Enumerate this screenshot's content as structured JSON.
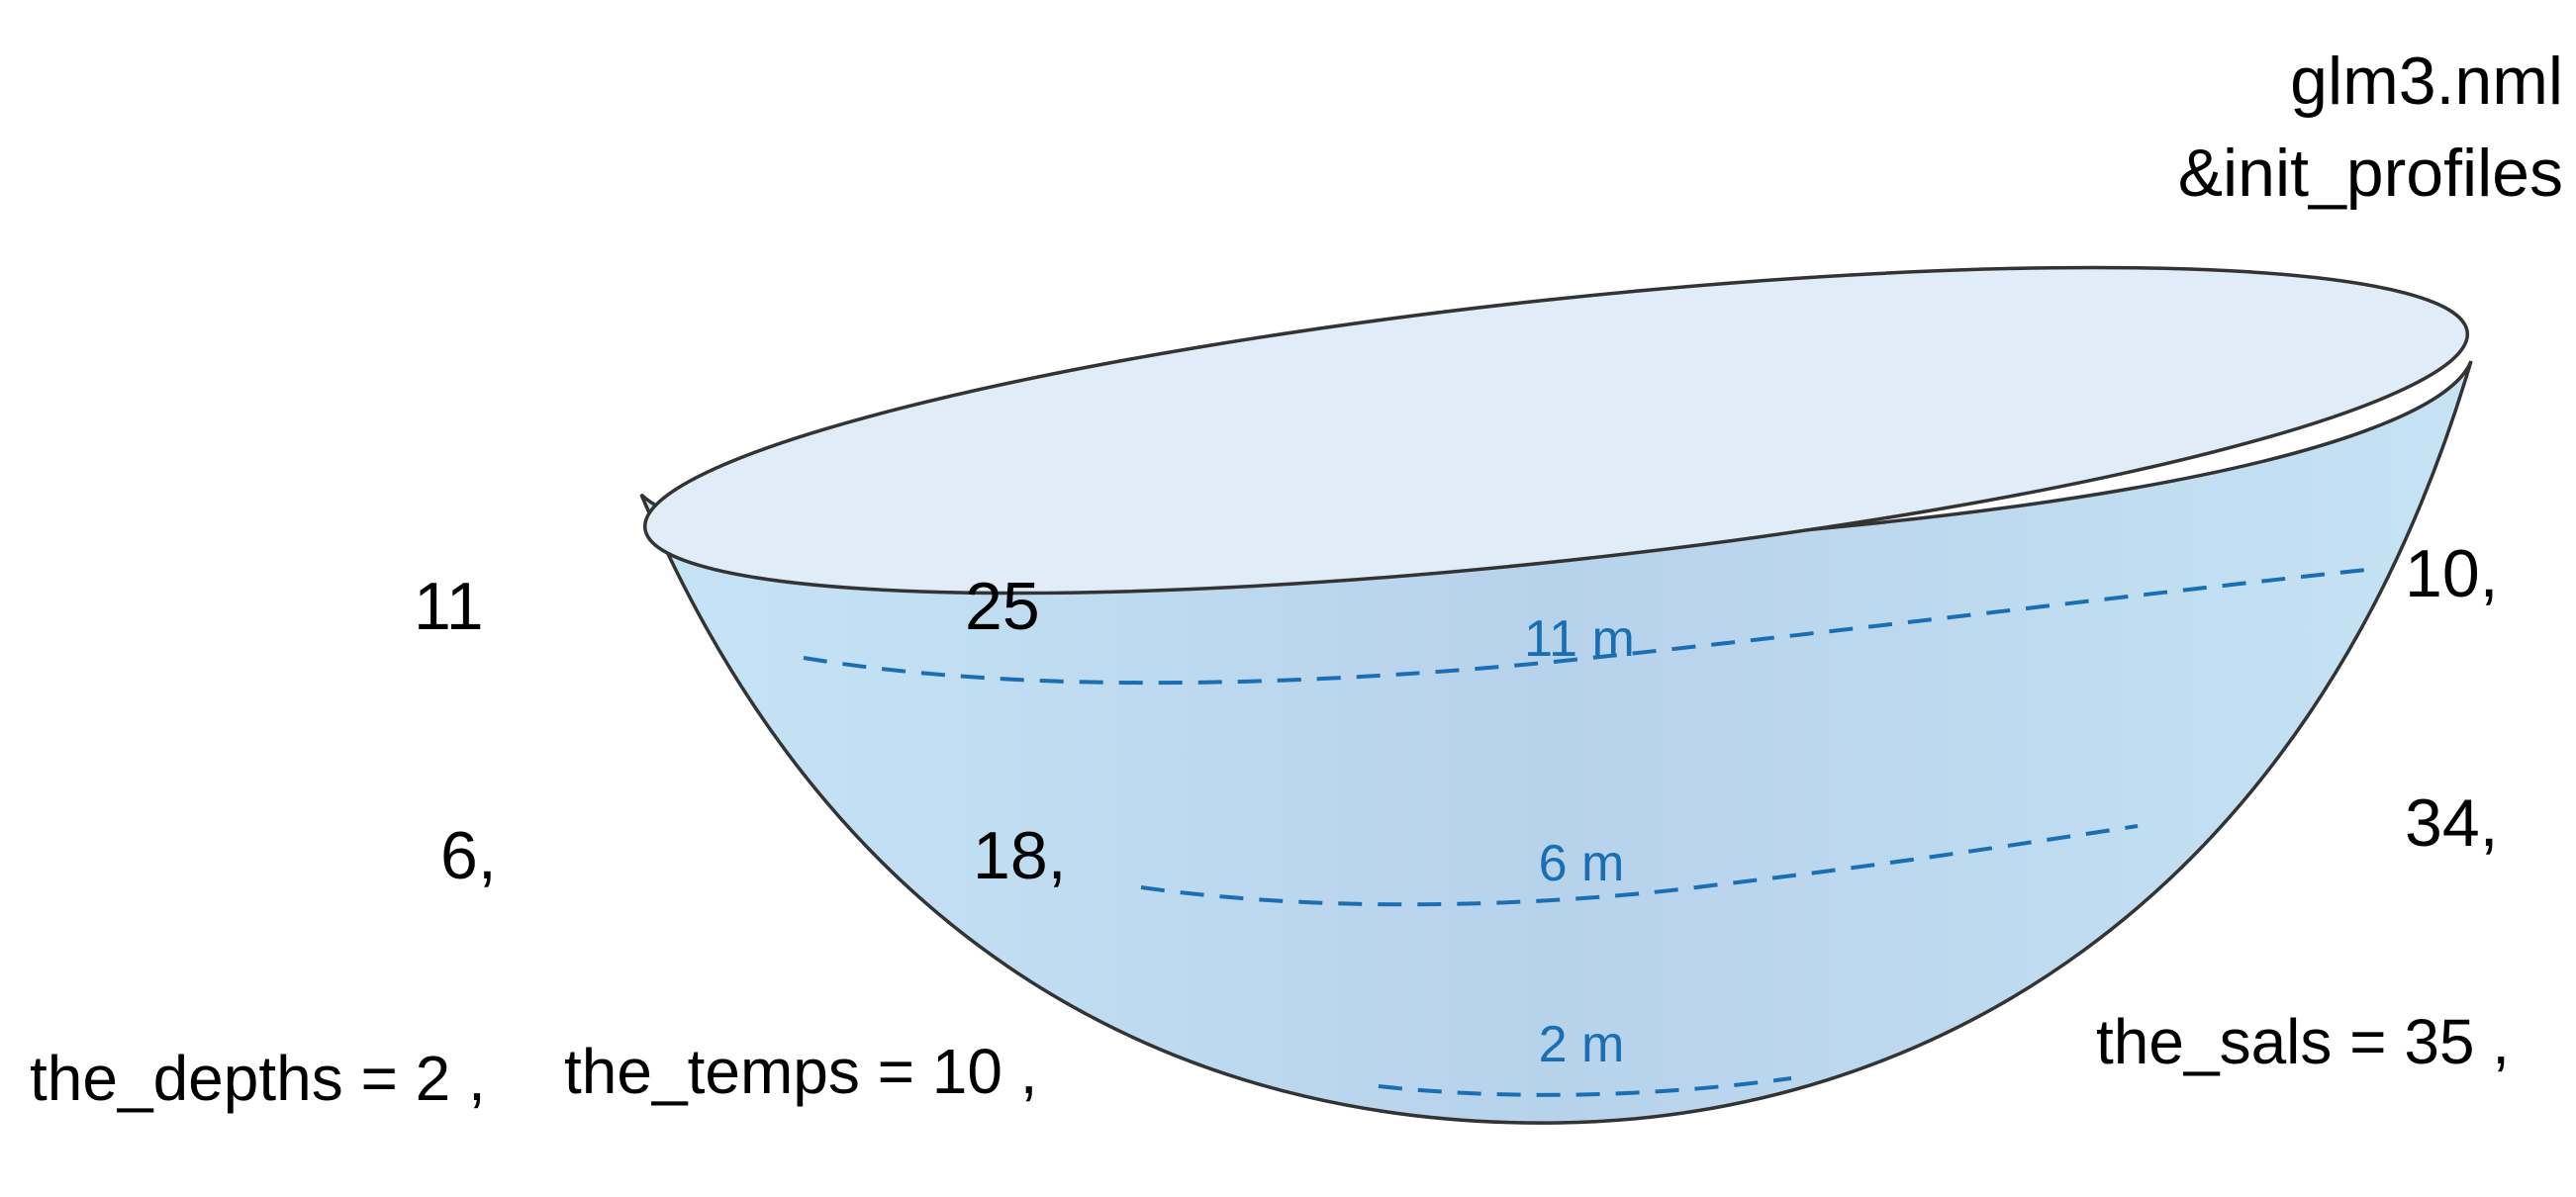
{
  "header": {
    "file": "glm3.nml",
    "section": "&init_profiles"
  },
  "depth_markers": [
    {
      "label": "11 m"
    },
    {
      "label": "6 m"
    },
    {
      "label": "2 m"
    }
  ],
  "profiles": {
    "depths": {
      "assignment": "the_depths = 2 ,",
      "values": [
        "6,",
        "11"
      ]
    },
    "temps": {
      "assignment": "the_temps = 10 ,",
      "values": [
        "18,",
        "25"
      ]
    },
    "sals": {
      "assignment": "the_sals = 35 ,",
      "values": [
        "34,",
        "10,"
      ]
    }
  },
  "colors": {
    "water_light": "#c6e3f4",
    "water_mid": "#b8d4ec",
    "surface": "#e0ecf7",
    "outline": "#333333",
    "depth_line": "#1a6fb4",
    "text": "#000000"
  }
}
